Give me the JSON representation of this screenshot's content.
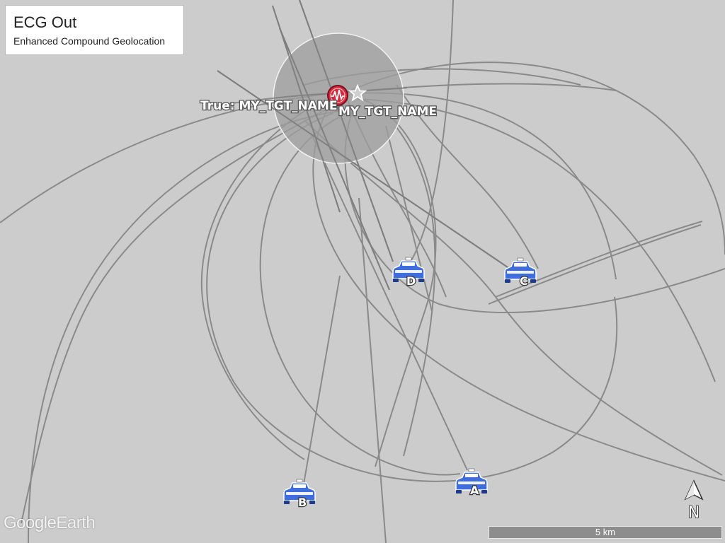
{
  "panel": {
    "title": "ECG Out",
    "subtitle": "Enhanced Compound Geolocation"
  },
  "target": {
    "true_label": "True: MY_TGT_NAME",
    "estimate_label": "MY_TGT_NAME",
    "true_icon": "ecg-target-marker-icon",
    "estimate_icon": "star-icon"
  },
  "sensors": [
    {
      "id": "A",
      "icon": "car-icon"
    },
    {
      "id": "B",
      "icon": "car-icon"
    },
    {
      "id": "C",
      "icon": "car-icon"
    },
    {
      "id": "D",
      "icon": "car-icon"
    }
  ],
  "scale_bar": {
    "label": "5 km"
  },
  "compass": {
    "label": "N"
  },
  "watermark": {
    "part1": "Google",
    "part2": "Earth"
  },
  "colors": {
    "background": "#cccccc",
    "lines": "#8a8a8a",
    "uncertainty_circle": "#9e9e9e",
    "sensor_blue": "#3f6de0",
    "target_red": "#d6283b"
  }
}
